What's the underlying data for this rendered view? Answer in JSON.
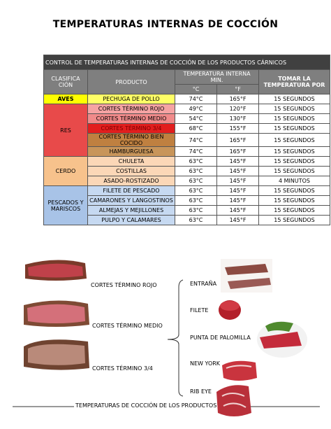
{
  "header": {
    "title": "TEMPERATURAS INTERNAS DE COCCIÓN"
  },
  "table": {
    "caption": "CONTROL DE TEMPERATURAS INTERNAS DE COCCIÓN DE LOS PRODUCTOS CÁRNICOS",
    "headers": {
      "classification": "CLASIFICA CIÓN",
      "product": "PRODUCTO",
      "temperature": "TEMPERATURA INTERNA MIN.",
      "celsius": "°C",
      "fahrenheit": "°F",
      "time": "TOMAR LA TEMPERATURA POR"
    },
    "groups": [
      {
        "name": "AVES",
        "rows": [
          [
            "PECHUGA DE POLLO",
            "74°C",
            "165°F",
            "15 SEGUNDOS"
          ]
        ]
      },
      {
        "name": "RES",
        "rows": [
          [
            "CORTES TÉRMINO ROJO",
            "49°C",
            "120°F",
            "15 SEGUNDOS"
          ],
          [
            "CORTES TÉRMINO MEDIO",
            "54°C",
            "130°F",
            "15 SEGUNDOS"
          ],
          [
            "CORTES TÉRMINO 3/4",
            "68°C",
            "155°F",
            "15 SEGUNDOS"
          ],
          [
            "CORTES TÉRMINO BIEN COCIDO",
            "74°C",
            "165°F",
            "15 SEGUNDOS"
          ],
          [
            "HAMBURGUESA",
            "74°C",
            "165°F",
            "15 SEGUNDOS"
          ]
        ]
      },
      {
        "name": "CERDO",
        "rows": [
          [
            "CHULETA",
            "63°C",
            "145°F",
            "15 SEGUNDOS"
          ],
          [
            "COSTILLAS",
            "63°C",
            "145°F",
            "15 SEGUNDOS"
          ],
          [
            "ASADO-ROSTIZADO",
            "63°C",
            "145°F",
            "4 MINUTOS"
          ]
        ]
      },
      {
        "name": "PESCADOS Y MARISCOS",
        "rows": [
          [
            "FILETE DE PESCADO",
            "63°C",
            "145°F",
            "15 SEGUNDOS"
          ],
          [
            "CAMARONES Y LANGOSTINOS",
            "63°C",
            "145°F",
            "15 SEGUNDOS"
          ],
          [
            "ALMEJAS Y MEJILLONES",
            "63°C",
            "145°F",
            "15 SEGUNDOS"
          ],
          [
            "PULPO Y CALAMARES",
            "63°C",
            "145°F",
            "15 SEGUNDOS"
          ]
        ]
      }
    ]
  },
  "doneness": [
    "CORTES TÉRMINO ROJO",
    "CORTES TÉRMINO MEDIO",
    "CORTES TÉRMINO 3/4"
  ],
  "cuts": [
    "ENTRAÑA",
    "FILETE",
    "PUNTA DE PALOMILLA",
    "NEW YORK",
    "RIB EYE"
  ],
  "footer": "TEMPERATURAS DE COCCIÓN DE LOS PRODUCTOS"
}
